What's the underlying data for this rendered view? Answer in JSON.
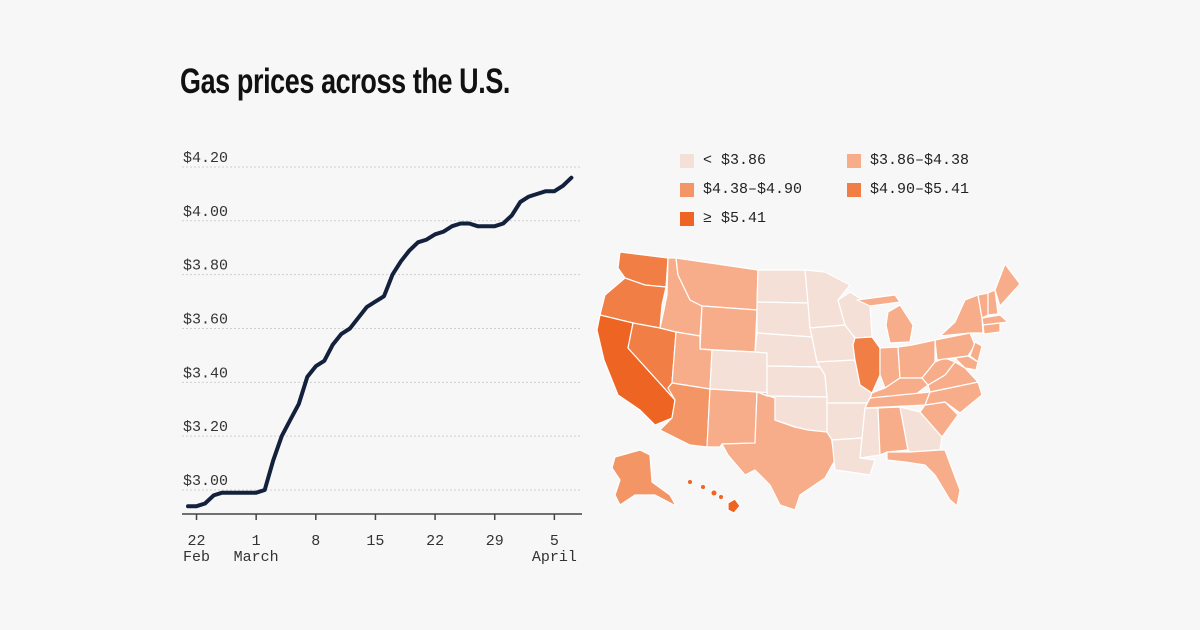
{
  "title": "Gas prices across the U.S.",
  "chart_data": [
    {
      "type": "line",
      "title": "",
      "xlabel": "",
      "ylabel": "",
      "ylim": [
        2.9,
        4.2
      ],
      "grid": true,
      "y_ticks": [
        "$3.00",
        "$3.20",
        "$3.40",
        "$3.60",
        "$3.80",
        "$4.00",
        "$4.20"
      ],
      "y_tick_values": [
        3.0,
        3.2,
        3.4,
        3.6,
        3.8,
        4.0,
        4.2
      ],
      "x_ticks": [
        {
          "date": "2022-02-22",
          "day": "22",
          "month": "Feb"
        },
        {
          "date": "2022-03-01",
          "day": "1",
          "month": "March"
        },
        {
          "date": "2022-03-08",
          "day": "8",
          "month": ""
        },
        {
          "date": "2022-03-15",
          "day": "15",
          "month": ""
        },
        {
          "date": "2022-03-22",
          "day": "22",
          "month": ""
        },
        {
          "date": "2022-03-29",
          "day": "29",
          "month": ""
        },
        {
          "date": "2022-04-05",
          "day": "5",
          "month": "April"
        }
      ],
      "line_color": "#13213d",
      "series": [
        {
          "x": [
            "2022-02-21",
            "2022-02-22",
            "2022-02-23",
            "2022-02-24",
            "2022-02-25",
            "2022-02-26",
            "2022-02-27",
            "2022-02-28",
            "2022-03-01",
            "2022-03-02",
            "2022-03-03",
            "2022-03-04",
            "2022-03-05",
            "2022-03-06",
            "2022-03-07",
            "2022-03-08",
            "2022-03-09",
            "2022-03-10",
            "2022-03-11",
            "2022-03-12",
            "2022-03-13",
            "2022-03-14",
            "2022-03-15",
            "2022-03-16",
            "2022-03-17",
            "2022-03-18",
            "2022-03-19",
            "2022-03-20",
            "2022-03-21",
            "2022-03-22",
            "2022-03-23",
            "2022-03-24",
            "2022-03-25",
            "2022-03-26",
            "2022-03-27",
            "2022-03-28",
            "2022-03-29",
            "2022-03-30",
            "2022-03-31",
            "2022-04-01",
            "2022-04-02",
            "2022-04-03",
            "2022-04-04",
            "2022-04-05",
            "2022-04-06",
            "2022-04-07"
          ],
          "y": [
            2.94,
            2.94,
            2.95,
            2.98,
            2.99,
            2.99,
            2.99,
            2.99,
            2.99,
            3.0,
            3.11,
            3.2,
            3.26,
            3.32,
            3.42,
            3.46,
            3.48,
            3.54,
            3.58,
            3.6,
            3.64,
            3.68,
            3.7,
            3.72,
            3.8,
            3.85,
            3.89,
            3.92,
            3.93,
            3.95,
            3.96,
            3.98,
            3.99,
            3.99,
            3.98,
            3.98,
            3.98,
            3.99,
            4.02,
            4.07,
            4.09,
            4.1,
            4.11,
            4.11,
            4.13,
            4.16
          ]
        }
      ]
    },
    {
      "type": "choropleth",
      "legend": [
        {
          "label": "< $3.86",
          "color": "#f5e0d7"
        },
        {
          "label": "$3.86–$4.38",
          "color": "#f8ad8a"
        },
        {
          "label": "$4.38–$4.90",
          "color": "#f49565"
        },
        {
          "label": "$4.90–$5.41",
          "color": "#f07e45"
        },
        {
          "label": "≥ $5.41",
          "color": "#ee6422"
        }
      ],
      "state_bins": {
        "CA": 4,
        "HI": 4,
        "WA": 3,
        "OR": 3,
        "NV": 3,
        "IL": 3,
        "AK": 2,
        "AZ": 2,
        "ID": 1,
        "MT": 1,
        "WY": 1,
        "UT": 1,
        "NM": 1,
        "TX": 1,
        "MI": 1,
        "IN": 1,
        "OH": 1,
        "KY": 1,
        "TN": 1,
        "AL": 1,
        "FL": 1,
        "SC": 1,
        "NC": 1,
        "VA": 1,
        "WV": 1,
        "PA": 1,
        "NY": 1,
        "NJ": 1,
        "MD": 1,
        "VT": 1,
        "NH": 1,
        "ME": 1,
        "MA": 1,
        "CT": 1,
        "ND": 0,
        "SD": 0,
        "NE": 0,
        "KS": 0,
        "OK": 0,
        "CO": 0,
        "MN": 0,
        "IA": 0,
        "MO": 0,
        "AR": 0,
        "LA": 0,
        "MS": 0,
        "WI": 0,
        "GA": 0
      }
    }
  ]
}
